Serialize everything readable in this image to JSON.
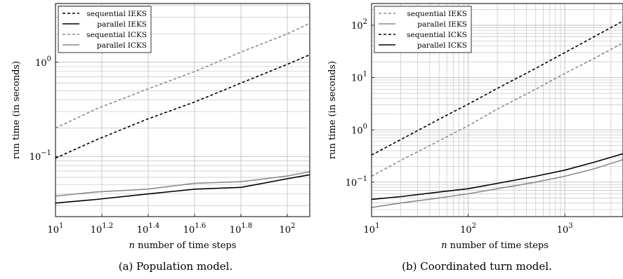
{
  "figure": {
    "captions": [
      "(a) Population model.",
      "(b) Coordinated turn model."
    ]
  },
  "chart_data": [
    {
      "type": "line",
      "panel": "a",
      "xlabel_var": "n",
      "xlabel_rest": " number of time steps",
      "ylabel": "run time (in seconds)",
      "xscale": "log",
      "yscale": "log",
      "xlim": [
        10,
        125
      ],
      "ylim": [
        0.023,
        4.2
      ],
      "grid": true,
      "legend_position": "top-left",
      "xticks": [
        {
          "value": 10,
          "base": "10",
          "exp": "1"
        },
        {
          "value": 15.85,
          "base": "10",
          "exp": "1.2"
        },
        {
          "value": 25.12,
          "base": "10",
          "exp": "1.4"
        },
        {
          "value": 39.81,
          "base": "10",
          "exp": "1.6"
        },
        {
          "value": 63.1,
          "base": "10",
          "exp": "1.8"
        },
        {
          "value": 100,
          "base": "10",
          "exp": "2"
        }
      ],
      "yticks": [
        {
          "value": 0.1,
          "base": "10",
          "exp": "−1"
        },
        {
          "value": 1,
          "base": "10",
          "exp": "0"
        }
      ],
      "series": [
        {
          "name": "sequential IEKS",
          "color": "#000000",
          "dashed": true,
          "x": [
            10,
            15,
            25,
            40,
            63,
            100,
            125
          ],
          "y": [
            0.096,
            0.15,
            0.25,
            0.38,
            0.6,
            0.95,
            1.2
          ]
        },
        {
          "name": "parallel IEKS",
          "color": "#000000",
          "dashed": false,
          "x": [
            10,
            15,
            25,
            40,
            63,
            100,
            125
          ],
          "y": [
            0.032,
            0.035,
            0.04,
            0.045,
            0.047,
            0.058,
            0.064
          ]
        },
        {
          "name": "sequential ICKS",
          "color": "#8a8a8a",
          "dashed": true,
          "x": [
            10,
            15,
            25,
            40,
            63,
            100,
            125
          ],
          "y": [
            0.2,
            0.32,
            0.52,
            0.8,
            1.28,
            2.0,
            2.6
          ]
        },
        {
          "name": "parallel ICKS",
          "color": "#8a8a8a",
          "dashed": false,
          "x": [
            10,
            15,
            25,
            40,
            63,
            100,
            125
          ],
          "y": [
            0.038,
            0.042,
            0.045,
            0.052,
            0.054,
            0.062,
            0.069
          ]
        }
      ]
    },
    {
      "type": "line",
      "panel": "b",
      "xlabel_var": "n",
      "xlabel_rest": " number of time steps",
      "ylabel": "run time (in seconds)",
      "xscale": "log",
      "yscale": "log",
      "xlim": [
        10,
        4000
      ],
      "ylim": [
        0.022,
        260
      ],
      "grid": true,
      "legend_position": "top-left",
      "xticks": [
        {
          "value": 10,
          "base": "10",
          "exp": "1"
        },
        {
          "value": 100,
          "base": "10",
          "exp": "2"
        },
        {
          "value": 1000,
          "base": "10",
          "exp": "3"
        }
      ],
      "yticks": [
        {
          "value": 0.1,
          "base": "10",
          "exp": "−1"
        },
        {
          "value": 1,
          "base": "10",
          "exp": "0"
        },
        {
          "value": 10,
          "base": "10",
          "exp": "1"
        },
        {
          "value": 100,
          "base": "10",
          "exp": "2"
        }
      ],
      "series": [
        {
          "name": "sequential IEKS",
          "color": "#8a8a8a",
          "dashed": true,
          "x": [
            10,
            20,
            50,
            100,
            200,
            500,
            1000,
            2000,
            4000
          ],
          "y": [
            0.13,
            0.26,
            0.62,
            1.2,
            2.5,
            6.0,
            12,
            23,
            46
          ]
        },
        {
          "name": "parallel IEKS",
          "color": "#8a8a8a",
          "dashed": false,
          "x": [
            10,
            20,
            50,
            100,
            200,
            500,
            1000,
            2000,
            4000
          ],
          "y": [
            0.033,
            0.04,
            0.05,
            0.06,
            0.075,
            0.1,
            0.13,
            0.18,
            0.27
          ]
        },
        {
          "name": "sequential ICKS",
          "color": "#000000",
          "dashed": true,
          "x": [
            10,
            20,
            50,
            100,
            200,
            500,
            1000,
            2000,
            4000
          ],
          "y": [
            0.33,
            0.65,
            1.6,
            3.1,
            6.2,
            15,
            30,
            60,
            120
          ]
        },
        {
          "name": "parallel ICKS",
          "color": "#000000",
          "dashed": false,
          "x": [
            10,
            20,
            50,
            100,
            200,
            500,
            1000,
            2000,
            4000
          ],
          "y": [
            0.047,
            0.053,
            0.065,
            0.075,
            0.095,
            0.13,
            0.17,
            0.24,
            0.35
          ]
        }
      ]
    }
  ]
}
